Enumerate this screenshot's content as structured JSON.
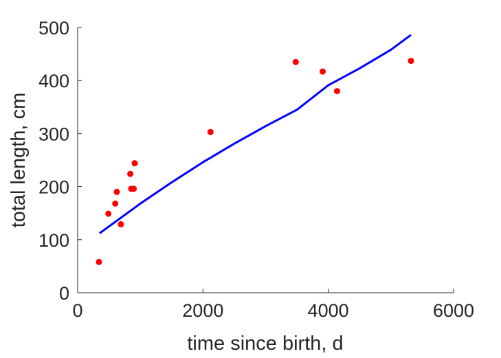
{
  "chart_data": {
    "type": "scatter",
    "title": "",
    "xlabel": "time since birth, d",
    "ylabel": "total length, cm",
    "xlim": [
      0,
      6000
    ],
    "ylim": [
      0,
      500
    ],
    "xticks": [
      0,
      2000,
      4000,
      6000
    ],
    "yticks": [
      0,
      100,
      200,
      300,
      400,
      500
    ],
    "grid": false,
    "legend": "none",
    "series": [
      {
        "kind": "points",
        "color": "#ff0000",
        "points": [
          [
            340,
            58
          ],
          [
            490,
            149
          ],
          [
            600,
            168
          ],
          [
            625,
            190
          ],
          [
            690,
            129
          ],
          [
            840,
            224
          ],
          [
            855,
            196
          ],
          [
            895,
            196
          ],
          [
            910,
            244
          ],
          [
            2120,
            303
          ],
          [
            3480,
            435
          ],
          [
            3910,
            417
          ],
          [
            4140,
            380
          ],
          [
            5320,
            437
          ]
        ]
      },
      {
        "kind": "line",
        "color": "#0000ff",
        "points": [
          [
            350,
            112
          ],
          [
            1000,
            168
          ],
          [
            1500,
            208
          ],
          [
            2000,
            246
          ],
          [
            2500,
            281
          ],
          [
            3000,
            314
          ],
          [
            3500,
            345
          ],
          [
            4000,
            391
          ],
          [
            4500,
            423
          ],
          [
            5000,
            458
          ],
          [
            5320,
            486
          ]
        ]
      }
    ]
  }
}
